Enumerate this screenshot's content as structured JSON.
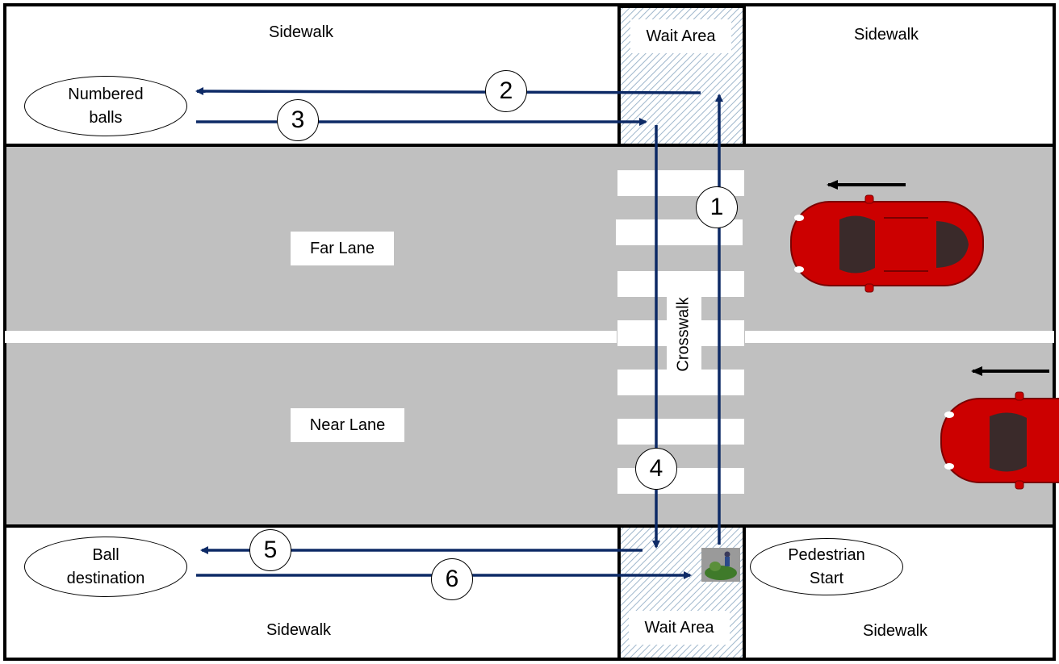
{
  "colors": {
    "road": "#c0c0c0",
    "route_arrow": "#0d2a66",
    "car_body": "#cc0000",
    "car_glass": "#3a2a2a",
    "wait_hatch": "#9fb7cc",
    "border": "#000000"
  },
  "sidewalk_top_left": "Sidewalk",
  "sidewalk_top_right": "Sidewalk",
  "sidewalk_bottom_left": "Sidewalk",
  "sidewalk_bottom_right": "Sidewalk",
  "wait_area_top": "Wait Area",
  "wait_area_bottom": "Wait Area",
  "far_lane": "Far Lane",
  "near_lane": "Near Lane",
  "crosswalk": "Crosswalk",
  "numbered_balls": "Numbered\nballs",
  "ball_destination": "Ball\ndestination",
  "pedestrian_start": "Pedestrian\nStart",
  "steps": [
    "1",
    "2",
    "3",
    "4",
    "5",
    "6"
  ],
  "icons": [
    "car-icon",
    "direction-arrow-icon",
    "pedestrian-icon"
  ]
}
